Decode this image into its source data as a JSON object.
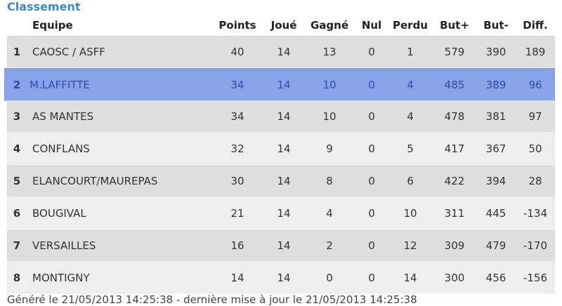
{
  "title": "Classement",
  "headers": {
    "team": "Equipe",
    "points": "Points",
    "played": "Joué",
    "won": "Gagné",
    "draw": "Nul",
    "lost": "Perdu",
    "goals_for": "But+",
    "goals_against": "But-",
    "diff": "Diff."
  },
  "highlight_color": "#89a3ea",
  "rows": [
    {
      "rank": "1",
      "team": "CAOSC / ASFF",
      "points": "40",
      "played": "14",
      "won": "13",
      "draw": "0",
      "lost": "1",
      "goals_for": "579",
      "goals_against": "390",
      "diff": "189"
    },
    {
      "rank": "2",
      "team": "M.LAFFITTE",
      "points": "34",
      "played": "14",
      "won": "10",
      "draw": "0",
      "lost": "4",
      "goals_for": "485",
      "goals_against": "389",
      "diff": "96"
    },
    {
      "rank": "3",
      "team": "AS MANTES",
      "points": "34",
      "played": "14",
      "won": "10",
      "draw": "0",
      "lost": "4",
      "goals_for": "478",
      "goals_against": "381",
      "diff": "97"
    },
    {
      "rank": "4",
      "team": "CONFLANS",
      "points": "32",
      "played": "14",
      "won": "9",
      "draw": "0",
      "lost": "5",
      "goals_for": "417",
      "goals_against": "367",
      "diff": "50"
    },
    {
      "rank": "5",
      "team": "ELANCOURT/MAUREPAS",
      "points": "30",
      "played": "14",
      "won": "8",
      "draw": "0",
      "lost": "6",
      "goals_for": "422",
      "goals_against": "394",
      "diff": "28"
    },
    {
      "rank": "6",
      "team": "BOUGIVAL",
      "points": "21",
      "played": "14",
      "won": "4",
      "draw": "0",
      "lost": "10",
      "goals_for": "311",
      "goals_against": "445",
      "diff": "-134"
    },
    {
      "rank": "7",
      "team": "VERSAILLES",
      "points": "16",
      "played": "14",
      "won": "2",
      "draw": "0",
      "lost": "12",
      "goals_for": "309",
      "goals_against": "479",
      "diff": "-170"
    },
    {
      "rank": "8",
      "team": "MONTIGNY",
      "points": "14",
      "played": "14",
      "won": "0",
      "draw": "0",
      "lost": "14",
      "goals_for": "300",
      "goals_against": "456",
      "diff": "-156"
    }
  ],
  "footer": "Généré le 21/05/2013 14:25:38 - dernière mise à jour le 21/05/2013 14:25:38"
}
